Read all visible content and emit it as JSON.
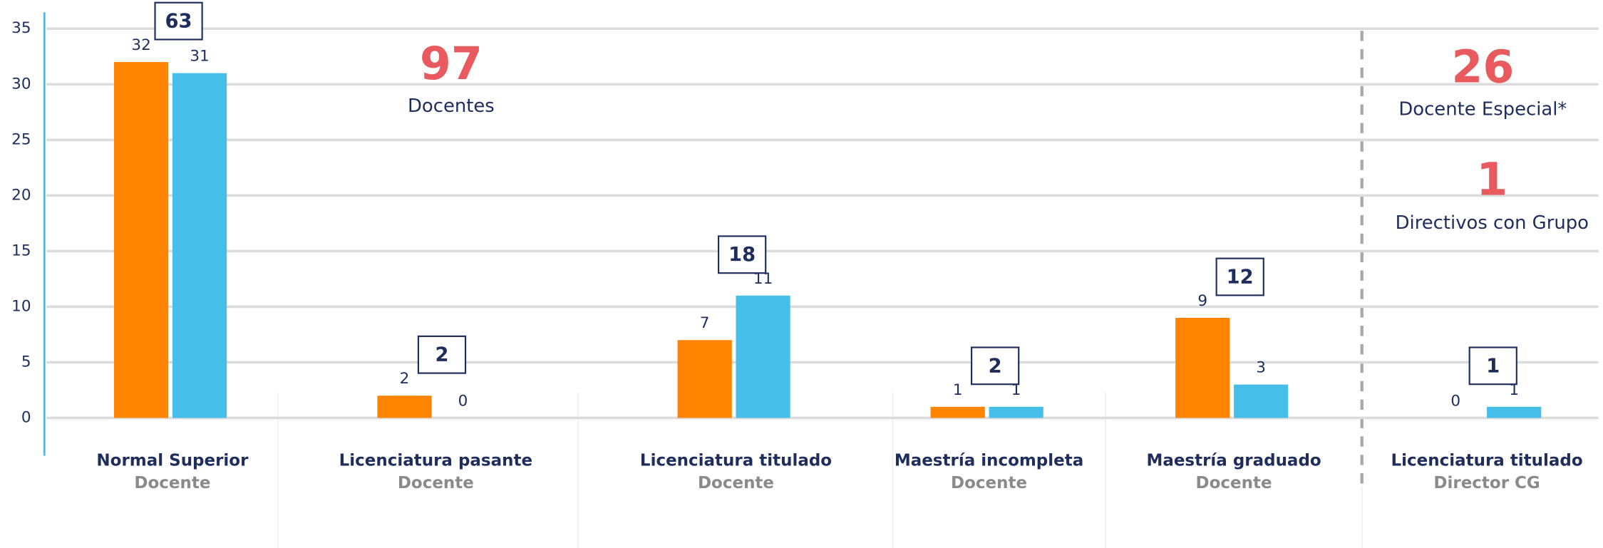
{
  "chart_data": {
    "type": "bar",
    "categories": [
      "Normal Superior",
      "Licenciatura pasante",
      "Licenciatura titulado",
      "Maestría incompleta",
      "Maestría graduado",
      "Licenciatura titulado"
    ],
    "subcategories": [
      "Docente",
      "Docente",
      "Docente",
      "Docente",
      "Docente",
      "Director CG"
    ],
    "series": [
      {
        "color": "#ff8500",
        "values": [
          32,
          2,
          7,
          1,
          9,
          0
        ]
      },
      {
        "color": "#45bfea",
        "values": [
          31,
          0,
          11,
          1,
          3,
          1
        ]
      }
    ],
    "totals": [
      63,
      2,
      18,
      2,
      12,
      1
    ],
    "ylim": [
      0,
      35
    ],
    "yticks": [
      0,
      5,
      10,
      15,
      20,
      25,
      30,
      35
    ],
    "grid": true,
    "annotations": [
      {
        "value": 97,
        "text": "Docentes"
      },
      {
        "value": 26,
        "text": "Docente Especial*"
      },
      {
        "value": 1,
        "text": "Directivos con Grupo"
      }
    ]
  }
}
